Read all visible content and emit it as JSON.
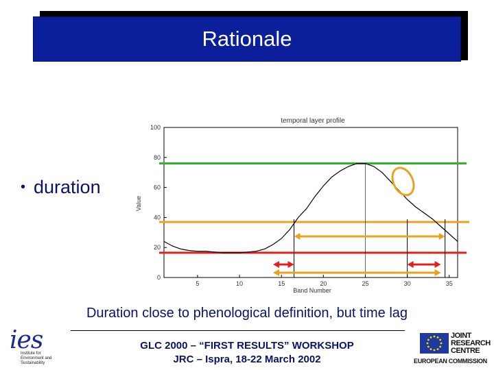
{
  "slide": {
    "title": "Rationale",
    "bullet": "duration",
    "caption": "Duration close to phenological definition, but time lag",
    "footer_line1": "GLC 2000 – “FIRST RESULTS” WORKSHOP",
    "footer_line2": "JRC – Ispra, 18-22 March 2002"
  },
  "logos": {
    "ies_word": "ies",
    "ies_subtitle": "Institute for Environment and Sustainability",
    "jrc_lines": [
      "JOINT",
      "RESEARCH",
      "CENTRE"
    ],
    "ec_label": "EUROPEAN COMMISSION"
  },
  "colors": {
    "title_bg": "#0b1f9a",
    "text_blue": "#0a1366",
    "green_line": "#2db52d",
    "orange_line": "#e8a21c",
    "red_line": "#e02020"
  },
  "chart_data": {
    "type": "line",
    "title": "temporal layer profile",
    "xlabel": "Band Number",
    "ylabel": "Value",
    "xlim": [
      1,
      36
    ],
    "ylim": [
      0,
      100
    ],
    "x_ticks": [
      5,
      10,
      15,
      20,
      25,
      30,
      35
    ],
    "y_ticks": [
      0,
      20,
      40,
      60,
      80,
      100
    ],
    "series": [
      {
        "x": [
          1,
          2,
          3,
          4,
          5,
          6,
          7,
          8,
          9,
          10,
          11,
          12,
          13,
          14,
          15,
          16,
          17,
          18,
          19,
          20,
          21,
          22,
          23,
          24,
          25,
          26,
          27,
          28,
          29,
          30,
          31,
          32,
          33,
          34,
          35,
          36
        ],
        "y": [
          24,
          21,
          19,
          18,
          17.5,
          17.5,
          17,
          16.5,
          16.5,
          16.5,
          17,
          17.5,
          19,
          22,
          26,
          32,
          40,
          46,
          54,
          61,
          67,
          71,
          74,
          76,
          76,
          74,
          70,
          64,
          58,
          52,
          47,
          43,
          39,
          34,
          29,
          24
        ]
      }
    ],
    "annotations": {
      "threshold_high": 76,
      "threshold_mid": 37,
      "threshold_low": 16.5,
      "duration_start": 16.5,
      "duration_end": 34.5,
      "lag_start_range": [
        14,
        16.5
      ],
      "lag_end_range": [
        30,
        34
      ],
      "lower_duration_range": [
        14,
        34
      ],
      "peak_x": 25,
      "marked_x": 30,
      "ellipse_center": [
        29.5,
        64
      ]
    }
  }
}
